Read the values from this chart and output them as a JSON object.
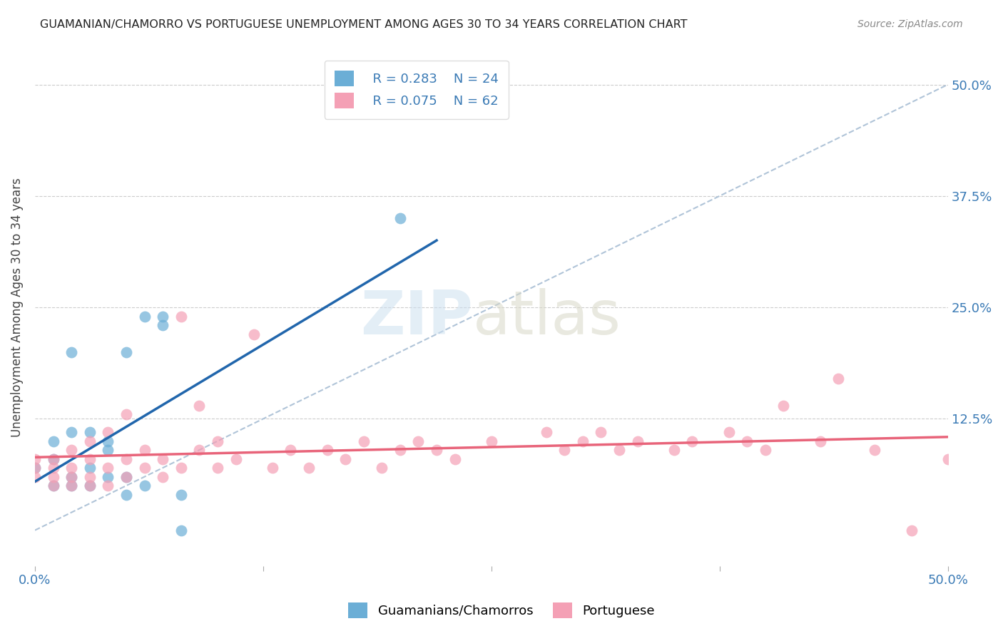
{
  "title": "GUAMANIAN/CHAMORRO VS PORTUGUESE UNEMPLOYMENT AMONG AGES 30 TO 34 YEARS CORRELATION CHART",
  "source": "Source: ZipAtlas.com",
  "ylabel": "Unemployment Among Ages 30 to 34 years",
  "ytick_values": [
    0,
    0.125,
    0.25,
    0.375,
    0.5
  ],
  "xlim": [
    0.0,
    0.5
  ],
  "ylim": [
    -0.04,
    0.54
  ],
  "legend_R1": "R = 0.283",
  "legend_N1": "N = 24",
  "legend_R2": "R = 0.075",
  "legend_N2": "N = 62",
  "blue_color": "#6baed6",
  "pink_color": "#f4a0b5",
  "blue_line_color": "#2166ac",
  "pink_line_color": "#e8647a",
  "diagonal_color": "#b0c4d8",
  "guamanian_x": [
    0.0,
    0.01,
    0.01,
    0.01,
    0.02,
    0.02,
    0.02,
    0.02,
    0.03,
    0.03,
    0.03,
    0.04,
    0.04,
    0.04,
    0.05,
    0.05,
    0.05,
    0.06,
    0.06,
    0.07,
    0.07,
    0.08,
    0.08,
    0.2
  ],
  "guamanian_y": [
    0.07,
    0.05,
    0.08,
    0.1,
    0.05,
    0.06,
    0.11,
    0.2,
    0.05,
    0.07,
    0.11,
    0.06,
    0.09,
    0.1,
    0.04,
    0.06,
    0.2,
    0.05,
    0.24,
    0.23,
    0.24,
    0.0,
    0.04,
    0.35
  ],
  "portuguese_x": [
    0.0,
    0.0,
    0.0,
    0.01,
    0.01,
    0.01,
    0.01,
    0.02,
    0.02,
    0.02,
    0.02,
    0.03,
    0.03,
    0.03,
    0.03,
    0.04,
    0.04,
    0.04,
    0.05,
    0.05,
    0.05,
    0.06,
    0.06,
    0.07,
    0.07,
    0.08,
    0.08,
    0.09,
    0.09,
    0.1,
    0.1,
    0.11,
    0.12,
    0.13,
    0.14,
    0.15,
    0.16,
    0.17,
    0.18,
    0.19,
    0.2,
    0.21,
    0.22,
    0.23,
    0.25,
    0.28,
    0.29,
    0.3,
    0.31,
    0.32,
    0.33,
    0.35,
    0.36,
    0.38,
    0.39,
    0.4,
    0.41,
    0.43,
    0.44,
    0.46,
    0.48,
    0.5
  ],
  "portuguese_y": [
    0.06,
    0.07,
    0.08,
    0.05,
    0.06,
    0.07,
    0.08,
    0.05,
    0.06,
    0.07,
    0.09,
    0.05,
    0.06,
    0.08,
    0.1,
    0.05,
    0.07,
    0.11,
    0.06,
    0.08,
    0.13,
    0.07,
    0.09,
    0.06,
    0.08,
    0.07,
    0.24,
    0.09,
    0.14,
    0.07,
    0.1,
    0.08,
    0.22,
    0.07,
    0.09,
    0.07,
    0.09,
    0.08,
    0.1,
    0.07,
    0.09,
    0.1,
    0.09,
    0.08,
    0.1,
    0.11,
    0.09,
    0.1,
    0.11,
    0.09,
    0.1,
    0.09,
    0.1,
    0.11,
    0.1,
    0.09,
    0.14,
    0.1,
    0.17,
    0.09,
    0.0,
    0.08
  ],
  "background_color": "#ffffff",
  "grid_color": "#cccccc"
}
